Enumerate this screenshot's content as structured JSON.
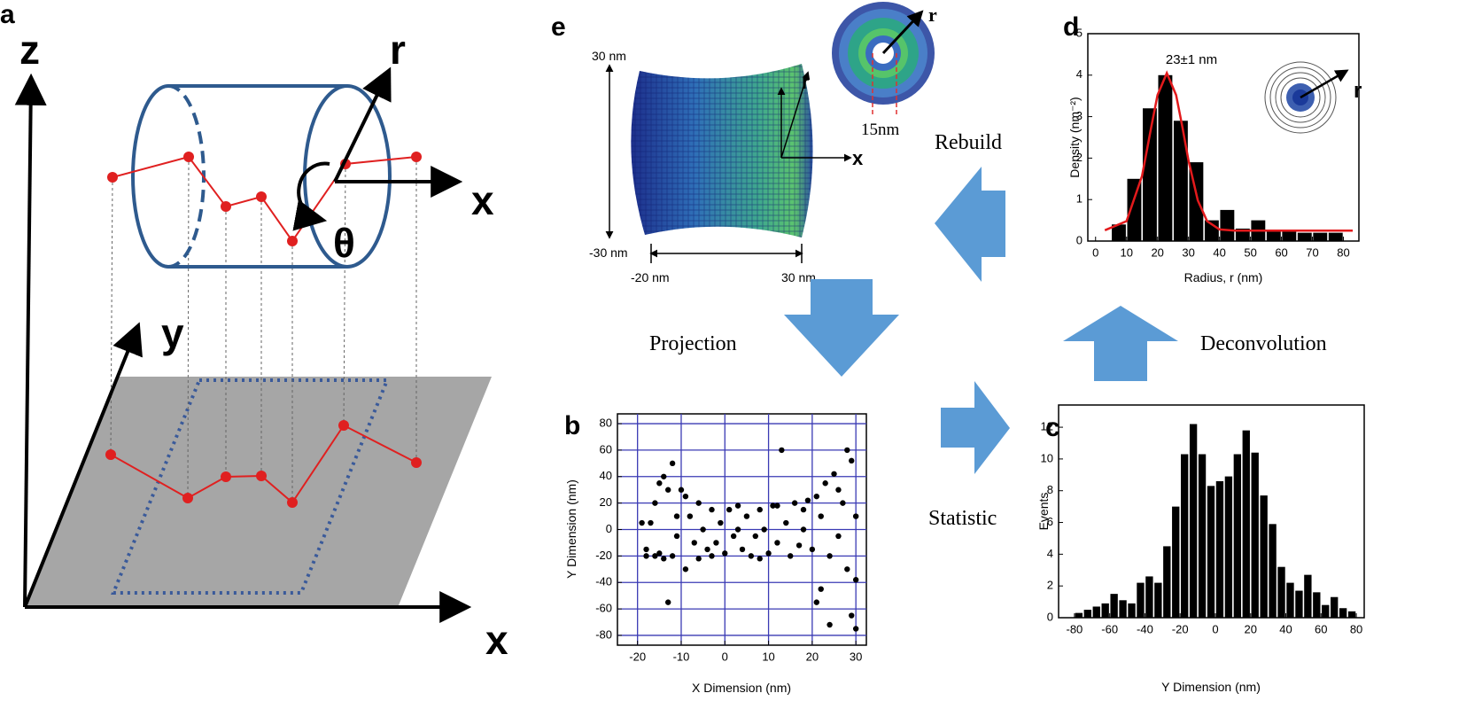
{
  "diagram_a": {
    "panel_label": "a",
    "z_label": "z",
    "y_label": "y",
    "x_label_axis": "x",
    "x_label_cylinder": "x",
    "r_label": "r",
    "theta_label": "θ"
  },
  "diagram_e": {
    "panel_label": "e",
    "height_top": "30 nm",
    "height_bottom": "-30 nm",
    "width_left": "-20 nm",
    "width_right": "30 nm",
    "r_label": "r",
    "x_label": "x",
    "ring_r_label": "r",
    "ring_width": "15nm"
  },
  "process_arrows": {
    "rebuild": "Rebuild",
    "projection": "Projection",
    "deconvolution": "Deconvolution",
    "statistic": "Statistic"
  },
  "chart_data": [
    {
      "type": "histogram",
      "panel_label": "d",
      "annotation": "23±1 nm",
      "inset_label": "r",
      "x_label": "Radius, r (nm)",
      "y_label": "Density (nm⁻²)",
      "color": "#000000",
      "bins": [
        5,
        10,
        15,
        20,
        25,
        30,
        35,
        40,
        45,
        50,
        55,
        60,
        65,
        70,
        75,
        80
      ],
      "values": [
        0.4,
        1.5,
        3.2,
        4.0,
        2.9,
        1.9,
        0.5,
        0.75,
        0.3,
        0.5,
        0.25,
        0.25,
        0.2,
        0.2,
        0.2
      ],
      "fit_line": {
        "color": "#e31a1c",
        "x": [
          3,
          10,
          15,
          18,
          20,
          23,
          26,
          28,
          30,
          33,
          36,
          40,
          45,
          50,
          60,
          70,
          83
        ],
        "y": [
          0.26,
          0.48,
          1.57,
          2.76,
          3.52,
          4.05,
          3.52,
          2.76,
          1.94,
          0.98,
          0.48,
          0.28,
          0.25,
          0.25,
          0.25,
          0.25,
          0.25
        ]
      },
      "xlim": [
        -2.5,
        85
      ],
      "ylim": [
        0,
        5
      ],
      "xticks": [
        0,
        10,
        20,
        30,
        40,
        50,
        60,
        70,
        80
      ],
      "yticks": [
        0,
        1,
        2,
        3,
        4,
        5
      ],
      "grid": false
    },
    {
      "type": "histogram",
      "panel_label": "c",
      "x_label": "Y Dimension (nm)",
      "y_label": "Events",
      "color": "#000000",
      "bins": [
        -80,
        -75,
        -70,
        -65,
        -60,
        -55,
        -50,
        -45,
        -40,
        -35,
        -30,
        -25,
        -20,
        -15,
        -10,
        -5,
        0,
        5,
        10,
        15,
        20,
        25,
        30,
        35,
        40,
        45,
        50,
        55,
        60,
        65,
        70,
        75,
        80
      ],
      "values": [
        0.3,
        0.5,
        0.7,
        0.9,
        1.5,
        1.1,
        0.9,
        2.2,
        2.6,
        2.2,
        4.5,
        7.0,
        10.3,
        12.2,
        10.3,
        8.3,
        8.6,
        8.9,
        10.3,
        11.8,
        10.4,
        7.7,
        5.9,
        3.2,
        2.2,
        1.7,
        2.7,
        1.6,
        0.8,
        1.3,
        0.6,
        0.4
      ],
      "xlim": [
        -89,
        84.5
      ],
      "ylim": [
        0,
        13.4
      ],
      "xticks": [
        -80,
        -60,
        -40,
        -20,
        0,
        20,
        40,
        60,
        80
      ],
      "yticks": [
        0,
        2,
        4,
        6,
        8,
        10,
        12
      ],
      "grid": false
    },
    {
      "type": "scatter",
      "panel_label": "b",
      "x_label": "X Dimension (nm)",
      "y_label": "Y Dimension (nm)",
      "color": "#000000",
      "grid": true,
      "grid_color": "#3a3ab4",
      "x": [
        -16,
        -15,
        -14,
        -13,
        -12,
        -17,
        -18,
        -16,
        -14,
        -13,
        -12,
        -11,
        -10,
        -9,
        -8,
        -9,
        -7,
        -6,
        -5,
        -4,
        -3,
        -2,
        -1,
        0,
        1,
        2,
        3,
        4,
        5,
        6,
        7,
        8,
        9,
        10,
        11,
        12,
        13,
        14,
        15,
        16,
        17,
        18,
        19,
        20,
        21,
        22,
        22,
        23,
        24,
        24,
        25,
        26,
        27,
        28,
        28,
        29,
        29,
        30,
        30,
        30,
        -19,
        -18,
        -15,
        -11,
        -6,
        -3,
        3,
        8,
        12,
        18,
        21,
        26
      ],
      "values": [
        20,
        35,
        40,
        30,
        50,
        5,
        -15,
        -20,
        -22,
        -55,
        -20,
        -5,
        30,
        25,
        10,
        -30,
        -10,
        20,
        0,
        -15,
        15,
        -10,
        5,
        -18,
        15,
        -5,
        18,
        -15,
        10,
        -20,
        -5,
        15,
        0,
        -18,
        18,
        -10,
        60,
        5,
        -20,
        20,
        -12,
        0,
        22,
        -15,
        25,
        -45,
        10,
        35,
        -20,
        -72,
        42,
        -5,
        20,
        -30,
        60,
        52,
        -65,
        10,
        -38,
        -75,
        5,
        -20,
        -18,
        10,
        -22,
        -20,
        0,
        -22,
        18,
        15,
        -55,
        30
      ],
      "xlim": [
        -24.6,
        32.4
      ],
      "ylim": [
        -87.4,
        87.4
      ],
      "xticks": [
        -20,
        -10,
        0,
        10,
        20,
        30
      ],
      "yticks": [
        -80,
        -60,
        -40,
        -20,
        0,
        20,
        40,
        60,
        80
      ]
    }
  ]
}
